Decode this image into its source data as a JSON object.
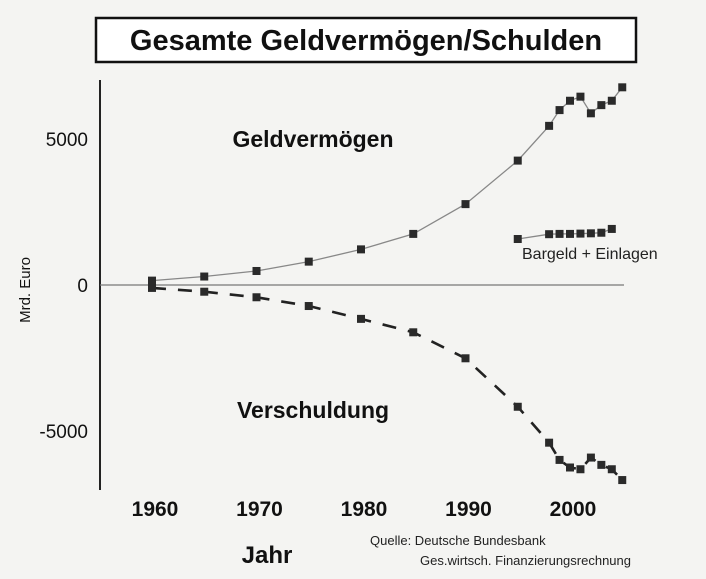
{
  "chart_data": {
    "type": "line",
    "title": "Gesamte Geldvermögen/Schulden",
    "xlabel": "Jahr",
    "ylabel": "Mrd. Euro",
    "ylim": [
      -7000,
      7000
    ],
    "xlim": [
      1960,
      2005
    ],
    "x_ticks": [
      "1960",
      "1970",
      "1980",
      "1990",
      "2000"
    ],
    "x_tick_values": [
      1960,
      1970,
      1980,
      1990,
      2000
    ],
    "y_ticks": [
      "5000",
      "0",
      "-5000"
    ],
    "y_tick_values": [
      5000,
      0,
      -5000
    ],
    "grid": false,
    "series": [
      {
        "name": "Geldvermögen",
        "style": "solid",
        "x": [
          1960,
          1965,
          1970,
          1975,
          1980,
          1985,
          1990,
          1995,
          1998,
          1999,
          2000,
          2001,
          2002,
          2003,
          2004,
          2005
        ],
        "values": [
          150,
          290,
          480,
          800,
          1220,
          1750,
          2770,
          4260,
          5450,
          5990,
          6310,
          6450,
          5880,
          6160,
          6310,
          6770
        ]
      },
      {
        "name": "Bargeld + Einlagen",
        "style": "solid",
        "x": [
          1995,
          1998,
          1999,
          2000,
          2001,
          2002,
          2003,
          2004
        ],
        "values": [
          1575,
          1740,
          1750,
          1750,
          1760,
          1770,
          1790,
          1920
        ]
      },
      {
        "name": "Verschuldung",
        "style": "dashed",
        "x": [
          1960,
          1965,
          1970,
          1975,
          1980,
          1985,
          1990,
          1995,
          1998,
          1999,
          2000,
          2001,
          2002,
          2003,
          2004,
          2005
        ],
        "values": [
          -100,
          -230,
          -420,
          -720,
          -1160,
          -1620,
          -2510,
          -4170,
          -5400,
          -5990,
          -6250,
          -6310,
          -5910,
          -6160,
          -6310,
          -6680
        ]
      }
    ],
    "annotations": {
      "geld": "Geldvermögen",
      "schuld": "Verschuldung",
      "bargeld": "Bargeld + Einlagen"
    },
    "source_line1": "Quelle: Deutsche Bundesbank",
    "source_line2": "Ges.wirtsch. Finanzierungsrechnung"
  }
}
